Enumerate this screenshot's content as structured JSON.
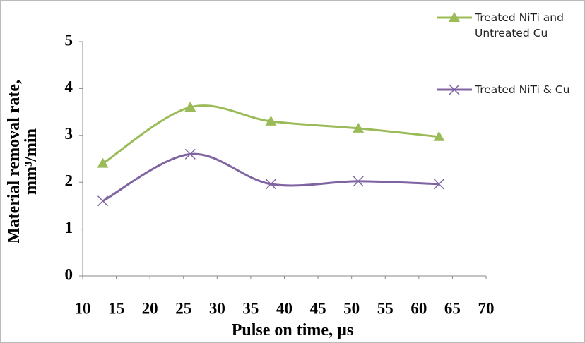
{
  "chart_data": {
    "type": "line",
    "x_label": "Pulse on time, µs",
    "y_label": "Material removal rate, mm³/min",
    "x": [
      13,
      26,
      38,
      51,
      63
    ],
    "series": [
      {
        "name": "Treated NiTi and Untreated Cu",
        "color": "#9bbb59",
        "marker": "triangle",
        "values": [
          2.4,
          3.6,
          3.3,
          3.15,
          2.97
        ]
      },
      {
        "name": "Treated NiTi & Cu",
        "color": "#8064a2",
        "marker": "x",
        "values": [
          1.6,
          2.6,
          1.96,
          2.02,
          1.96
        ]
      }
    ],
    "xlim": [
      10,
      70
    ],
    "xticks": [
      10,
      15,
      20,
      25,
      30,
      35,
      40,
      45,
      50,
      55,
      60,
      65,
      70
    ],
    "ylim": [
      0,
      5
    ],
    "yticks": [
      0,
      1,
      2,
      3,
      4,
      5
    ],
    "smooth": true,
    "legend": "top-right"
  }
}
